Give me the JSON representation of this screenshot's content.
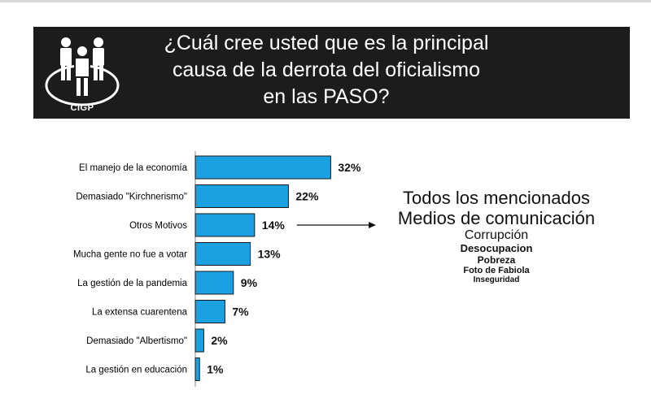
{
  "header": {
    "logo_text": "CIGP",
    "title_lines": [
      "¿Cuál cree usted que es la principal",
      "causa de la derrota del oficialismo",
      "en las PASO?"
    ]
  },
  "chart_data": {
    "type": "bar",
    "orientation": "horizontal",
    "categories": [
      "El manejo de la economía",
      "Demasiado \"Kirchnerismo\"",
      "Otros Motivos",
      "Mucha gente no fue a votar",
      "La gestión de la pandemia",
      "La extensa cuarentena",
      "Demasiado \"Albertismo\"",
      "La gestión en educación"
    ],
    "values": [
      32,
      22,
      14,
      13,
      9,
      7,
      2,
      1
    ],
    "value_labels": [
      "32%",
      "22%",
      "14%",
      "13%",
      "9%",
      "7%",
      "2%",
      "1%"
    ],
    "unit": "%",
    "colors": {
      "bar": "#1ba1e2",
      "bar_border": "#1a1a1a"
    },
    "grid": false,
    "legend": "none"
  },
  "annotation": {
    "from_category": "Otros Motivos",
    "items": [
      "Todos los mencionados",
      "Medios de comunicación",
      "Corrupción",
      "Desocupacion",
      "Pobreza",
      "Foto de Fabiola",
      "Inseguridad"
    ]
  },
  "colors": {
    "header_bg": "#1c1c1c",
    "header_text": "#ffffff"
  }
}
